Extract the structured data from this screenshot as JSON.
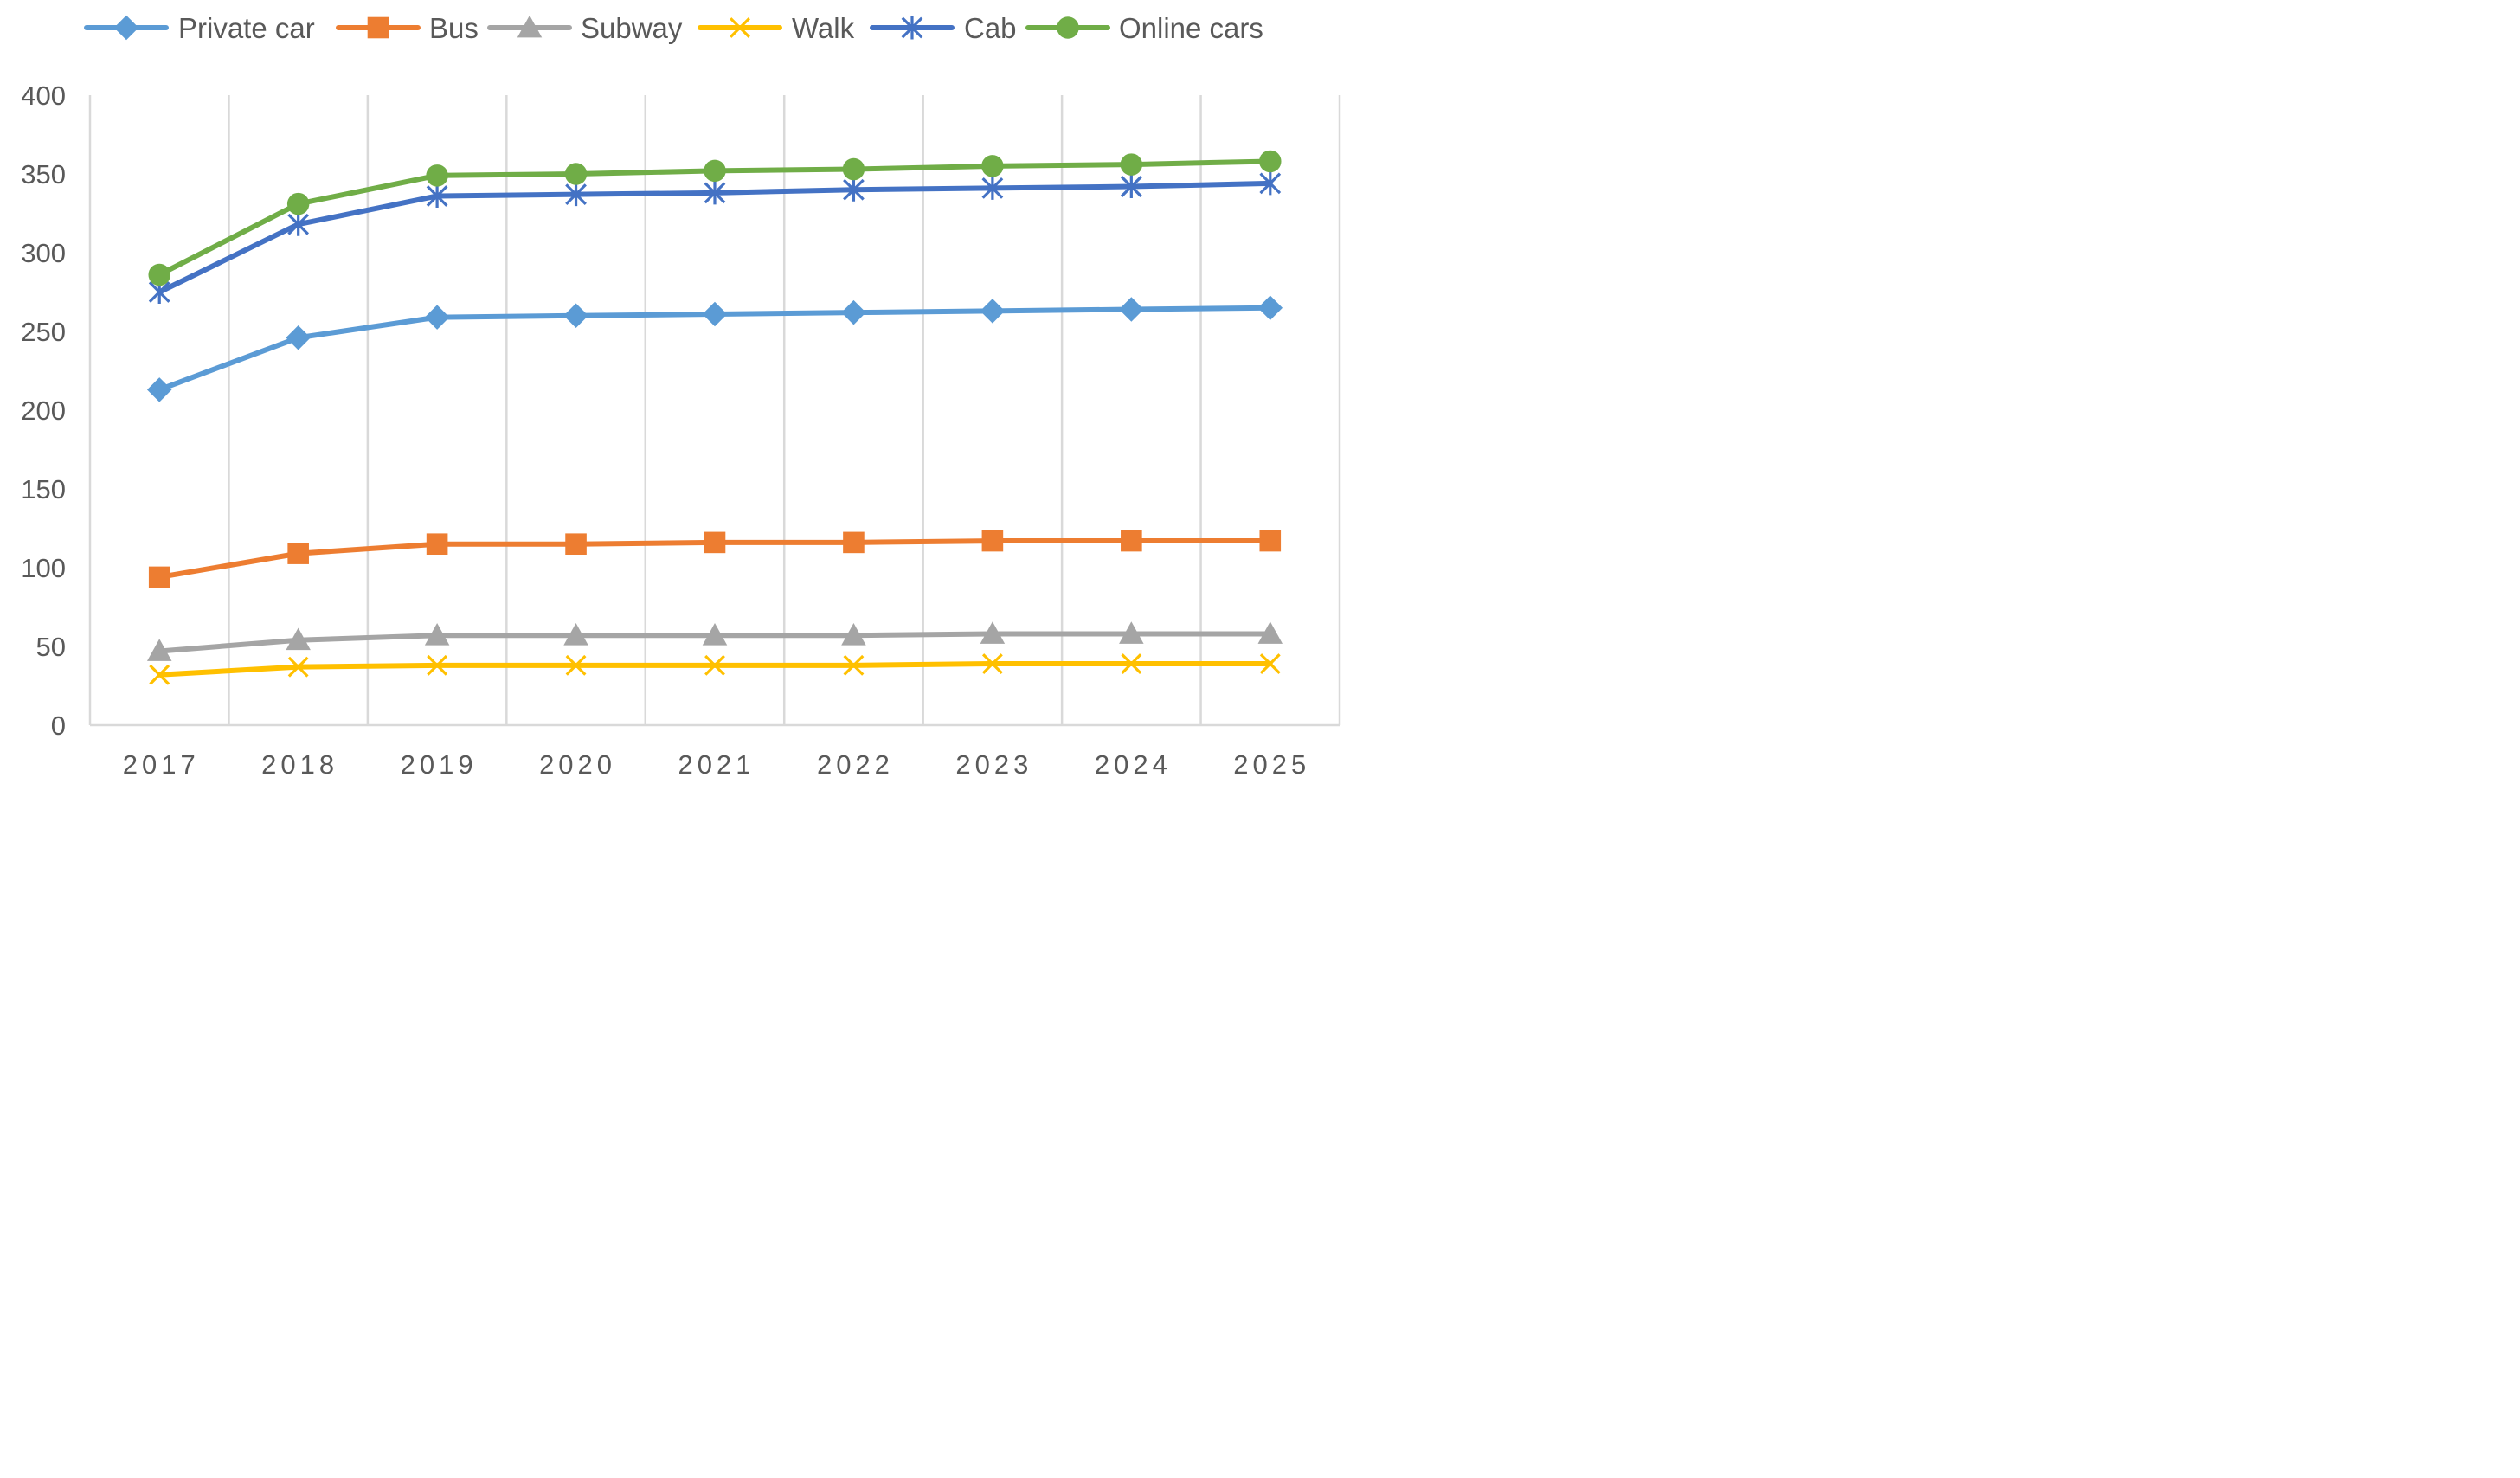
{
  "chart_data": {
    "type": "line",
    "title": "",
    "xlabel": "",
    "ylabel": "",
    "categories": [
      "2017",
      "2018",
      "2019",
      "2020",
      "2021",
      "2022",
      "2023",
      "2024",
      "2025"
    ],
    "ylim": [
      0,
      400
    ],
    "yticks": [
      0,
      50,
      100,
      150,
      200,
      250,
      300,
      350,
      400
    ],
    "grid": "vertical",
    "legend_position": "top",
    "series": [
      {
        "name": "Private car",
        "color": "#5B9BD5",
        "marker": "diamond",
        "values": [
          213,
          246,
          259,
          260,
          261,
          262,
          263,
          264,
          265
        ]
      },
      {
        "name": "Bus",
        "color": "#ED7D31",
        "marker": "square",
        "values": [
          94,
          109,
          115,
          115,
          116,
          116,
          117,
          117,
          117
        ]
      },
      {
        "name": "Subway",
        "color": "#A5A5A5",
        "marker": "triangle",
        "values": [
          47,
          54,
          57,
          57,
          57,
          57,
          58,
          58,
          58
        ]
      },
      {
        "name": "Walk",
        "color": "#FFC000",
        "marker": "x",
        "values": [
          32,
          37,
          38,
          38,
          38,
          38,
          39,
          39,
          39
        ]
      },
      {
        "name": "Cab",
        "color": "#4472C4",
        "marker": "star",
        "values": [
          275,
          318,
          336,
          337,
          338,
          340,
          341,
          342,
          344
        ]
      },
      {
        "name": "Online cars",
        "color": "#70AD47",
        "marker": "circle",
        "values": [
          286,
          331,
          349,
          350,
          352,
          353,
          355,
          356,
          358
        ]
      }
    ]
  }
}
